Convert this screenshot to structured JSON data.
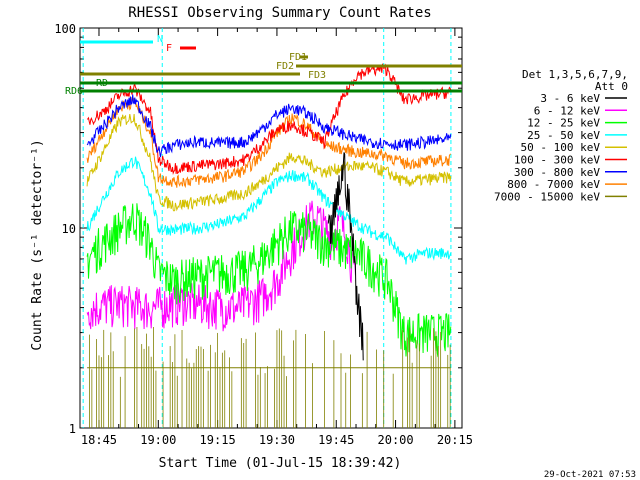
{
  "title": "RHESSI Observing Summary Count Rates",
  "timestamp": "29-Oct-2021 07:53",
  "chart_data": {
    "type": "line",
    "title": "RHESSI Observing Summary Count Rates",
    "xlabel": "Start Time (01-Jul-15 18:39:42)",
    "ylabel": "Count Rate (s⁻¹ detector⁻¹)",
    "y_scale": "log",
    "ylim": [
      1,
      100
    ],
    "xlim_minutes": [
      18.67,
      20.28
    ],
    "x_tick_labels": [
      "18:45",
      "19:00",
      "19:15",
      "19:30",
      "19:45",
      "20:00",
      "20:15"
    ],
    "x_tick_minutes_past_1800": [
      45,
      60,
      75,
      90,
      105,
      120,
      135
    ],
    "y_tick_labels": [
      "1",
      "10",
      "100"
    ],
    "y_tick_values": [
      1,
      10,
      100
    ],
    "legend": {
      "title": [
        "Det 1,3,5,6,7,9,",
        "Att 0"
      ],
      "entries": [
        {
          "label": "3 - 6 keV",
          "color": "#000000"
        },
        {
          "label": "6 - 12 keV",
          "color": "#ff00ff"
        },
        {
          "label": "12 - 25 keV",
          "color": "#00ff00"
        },
        {
          "label": "25 - 50 keV",
          "color": "#00ffff"
        },
        {
          "label": "50 - 100 keV",
          "color": "#d4c000"
        },
        {
          "label": "100 - 300 keV",
          "color": "#ff0000"
        },
        {
          "label": "300 - 800 keV",
          "color": "#0000ff"
        },
        {
          "label": "800 - 7000 keV",
          "color": "#ff8000"
        },
        {
          "label": "7000 - 15000 keV",
          "color": "#808000"
        }
      ],
      "placement": "right"
    },
    "annotations": [
      {
        "label": "N",
        "color": "#00ffff"
      },
      {
        "label": "F",
        "color": "#ff0000"
      },
      {
        "label": "FD1",
        "color": "#808000"
      },
      {
        "label": "FD2",
        "color": "#808000"
      },
      {
        "label": "FD3",
        "color": "#808000"
      },
      {
        "label": "RD",
        "color": "#008000"
      },
      {
        "label": "RD6",
        "color": "#008000"
      }
    ],
    "series": [
      {
        "name": "3 - 6 keV",
        "color": "#000000",
        "x": [
          103.0,
          104.0,
          105.0,
          106.0,
          107.0,
          108.0,
          109.0,
          110.0,
          111.0,
          112.0
        ],
        "y": [
          9.0,
          10.5,
          13.0,
          17.0,
          21.0,
          14.0,
          9.0,
          5.5,
          3.5,
          2.7
        ]
      },
      {
        "name": "6 - 12 keV",
        "color": "#ff00ff",
        "x": [
          42.0,
          50.0,
          58.0,
          66.0,
          74.0,
          80.0,
          86.0,
          90.0,
          94.0,
          98.0,
          100.0,
          102.0,
          104.0,
          106.0,
          108.0,
          110.0
        ],
        "y": [
          4.0,
          4.2,
          4.0,
          4.3,
          4.1,
          4.0,
          4.5,
          5.5,
          8.0,
          11.0,
          11.5,
          10.0,
          9.0,
          11.0,
          8.5,
          5.0
        ]
      },
      {
        "name": "12 - 25 keV",
        "color": "#00ff00",
        "x": [
          42.0,
          46.0,
          50.0,
          54.0,
          58.0,
          60.0,
          64.0,
          70.0,
          76.0,
          82.0,
          86.0,
          90.0,
          94.0,
          98.0,
          102.0,
          106.0,
          110.0,
          114.0,
          118.0,
          122.0,
          128.0,
          134.0
        ],
        "y": [
          7.0,
          8.5,
          10.0,
          11.5,
          8.5,
          6.0,
          5.5,
          5.8,
          6.0,
          6.2,
          7.0,
          8.5,
          10.0,
          9.5,
          8.5,
          8.0,
          7.5,
          6.5,
          5.5,
          3.0,
          3.0,
          3.0
        ]
      },
      {
        "name": "25 - 50 keV",
        "color": "#00ffff",
        "x": [
          42.0,
          46.0,
          50.0,
          54.0,
          58.0,
          60.0,
          64.0,
          70.0,
          76.0,
          82.0,
          86.0,
          90.0,
          94.0,
          98.0,
          102.0,
          106.0,
          110.0,
          114.0,
          118.0,
          122.0,
          128.0,
          134.0
        ],
        "y": [
          10.0,
          14.0,
          19.0,
          22.0,
          15.0,
          10.0,
          9.8,
          10.0,
          10.5,
          11.5,
          14.0,
          17.0,
          18.5,
          17.5,
          14.0,
          12.0,
          10.5,
          9.5,
          9.0,
          7.0,
          7.5,
          7.5
        ]
      },
      {
        "name": "50 - 100 keV",
        "color": "#d4c000",
        "x": [
          42.0,
          46.0,
          50.0,
          54.0,
          58.0,
          60.0,
          64.0,
          70.0,
          76.0,
          82.0,
          86.0,
          90.0,
          94.0,
          98.0,
          102.0,
          106.0,
          110.0,
          114.0,
          118.0,
          122.0,
          128.0,
          134.0
        ],
        "y": [
          17.0,
          24.0,
          34.0,
          36.0,
          22.0,
          14.0,
          13.0,
          13.5,
          14.0,
          15.0,
          17.0,
          20.0,
          23.0,
          21.0,
          19.0,
          20.0,
          20.5,
          20.0,
          19.0,
          17.0,
          17.5,
          18.0
        ]
      },
      {
        "name": "100 - 300 keV",
        "color": "#ff0000",
        "x": [
          42.0,
          46.0,
          50.0,
          54.0,
          58.0,
          60.0,
          64.0,
          70.0,
          76.0,
          82.0,
          86.0,
          90.0,
          94.0,
          98.0,
          102.0,
          106.0,
          110.0,
          114.0,
          118.0,
          122.0,
          128.0,
          134.0
        ],
        "y": [
          34.0,
          38.0,
          46.0,
          50.0,
          38.0,
          22.0,
          20.0,
          20.5,
          21.0,
          22.0,
          26.0,
          31.0,
          33.0,
          30.0,
          27.0,
          42.0,
          58.0,
          62.0,
          62.0,
          44.0,
          46.0,
          48.0
        ]
      },
      {
        "name": "300 - 800 keV",
        "color": "#0000ff",
        "x": [
          42.0,
          46.0,
          50.0,
          54.0,
          58.0,
          60.0,
          64.0,
          70.0,
          76.0,
          82.0,
          86.0,
          90.0,
          94.0,
          98.0,
          102.0,
          106.0,
          110.0,
          114.0,
          118.0,
          122.0,
          128.0,
          134.0
        ],
        "y": [
          26.0,
          32.0,
          40.0,
          44.0,
          32.0,
          24.0,
          26.0,
          27.0,
          26.5,
          27.0,
          31.0,
          37.0,
          40.0,
          37.0,
          32.0,
          30.0,
          28.0,
          27.0,
          26.5,
          26.0,
          27.0,
          28.0
        ]
      },
      {
        "name": "800 - 7000 keV",
        "color": "#ff8000",
        "x": [
          42.0,
          46.0,
          50.0,
          54.0,
          58.0,
          60.0,
          64.0,
          70.0,
          76.0,
          82.0,
          86.0,
          90.0,
          94.0,
          98.0,
          102.0,
          106.0,
          110.0,
          114.0,
          118.0,
          122.0,
          128.0,
          134.0
        ],
        "y": [
          22.0,
          30.0,
          40.0,
          43.0,
          30.0,
          18.0,
          17.0,
          17.5,
          18.0,
          19.5,
          23.0,
          30.0,
          36.0,
          32.0,
          26.0,
          25.0,
          24.0,
          23.5,
          23.0,
          21.0,
          21.5,
          22.0
        ]
      },
      {
        "name": "7000 - 15000 keV",
        "color": "#808000",
        "x": [
          42.0,
          50.0,
          58.0,
          66.0,
          74.0,
          82.0,
          90.0,
          98.0,
          106.0,
          114.0,
          122.0,
          130.0,
          134.0
        ],
        "y": [
          2.0,
          2.0,
          2.0,
          2.0,
          2.0,
          2.0,
          2.0,
          2.0,
          2.0,
          2.0,
          2.0,
          2.0,
          2.0
        ]
      }
    ]
  }
}
